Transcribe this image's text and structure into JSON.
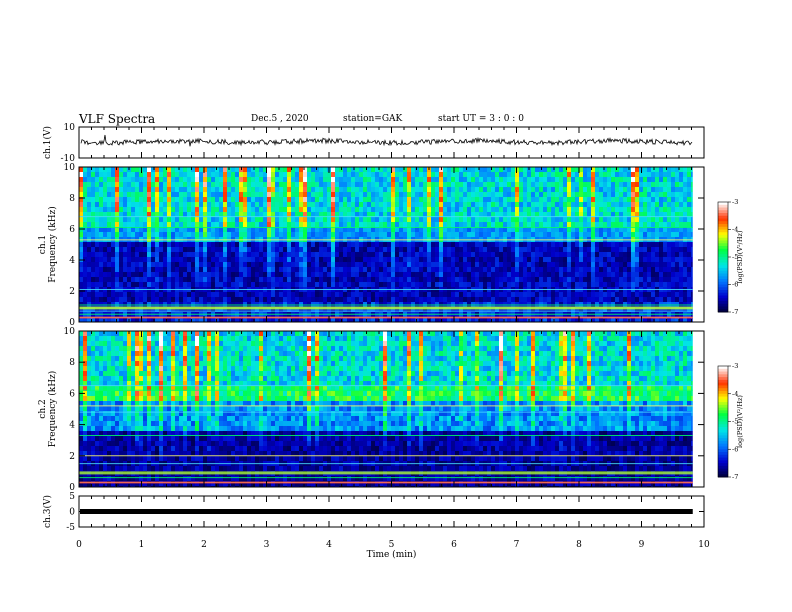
{
  "header": {
    "title": "VLF Spectra",
    "date": "Dec.5 , 2020",
    "station": "station=GAK",
    "start": "start UT = 3 : 0 : 0"
  },
  "chart_data": [
    {
      "type": "line",
      "panel": "ch1-waveform",
      "ylabel": "ch.1(V)",
      "yticks": [
        "10",
        "-10"
      ],
      "ylim": [
        -10,
        10
      ],
      "note_level_v": 0.5
    },
    {
      "type": "heatmap",
      "panel": "ch1-spectrogram",
      "ylabel": "ch.1 Frequency (kHz)",
      "yticks": [
        "0",
        "2",
        "4",
        "6",
        "8",
        "10"
      ],
      "ylim": [
        0,
        10
      ],
      "colorbar": {
        "label": "log(PSD)(V²/Hz)",
        "ticks": [
          "-3",
          "-4",
          "-5",
          "-6",
          "-7"
        ],
        "range": [
          -7,
          -3
        ]
      },
      "bands_khz": [
        0.3,
        0.5,
        0.7,
        0.9,
        1.1,
        2.1,
        5.3,
        6.1,
        6.8
      ]
    },
    {
      "type": "heatmap",
      "panel": "ch2-spectrogram",
      "ylabel": "ch.2 Frequency (kHz)",
      "yticks": [
        "0",
        "2",
        "4",
        "6",
        "8",
        "10"
      ],
      "ylim": [
        0,
        10
      ],
      "colorbar": {
        "label": "log(PSD)(V²/Hz)",
        "ticks": [
          "-3",
          "-4",
          "-5",
          "-6",
          "-7"
        ],
        "range": [
          -7,
          -3
        ]
      },
      "bands_khz": [
        0.3,
        0.6,
        1.5,
        2.0,
        3.3,
        4.8,
        5.2,
        6.2,
        6.5
      ]
    },
    {
      "type": "line",
      "panel": "ch3-waveform",
      "ylabel": "ch.3(V)",
      "yticks": [
        "5",
        "0",
        "-5"
      ],
      "ylim": [
        -5,
        5
      ],
      "level_v": 0
    }
  ],
  "xaxis": {
    "label": "Time (min)",
    "ticks": [
      "0",
      "1",
      "2",
      "3",
      "4",
      "5",
      "6",
      "7",
      "8",
      "9",
      "10"
    ],
    "xlim": [
      0,
      10
    ],
    "data_end_min": 9.82
  },
  "colors": {
    "colormap": [
      "#000033",
      "#0000cc",
      "#0077ff",
      "#00e6e6",
      "#00ff44",
      "#ffff00",
      "#ff3300",
      "#ffffff"
    ]
  }
}
